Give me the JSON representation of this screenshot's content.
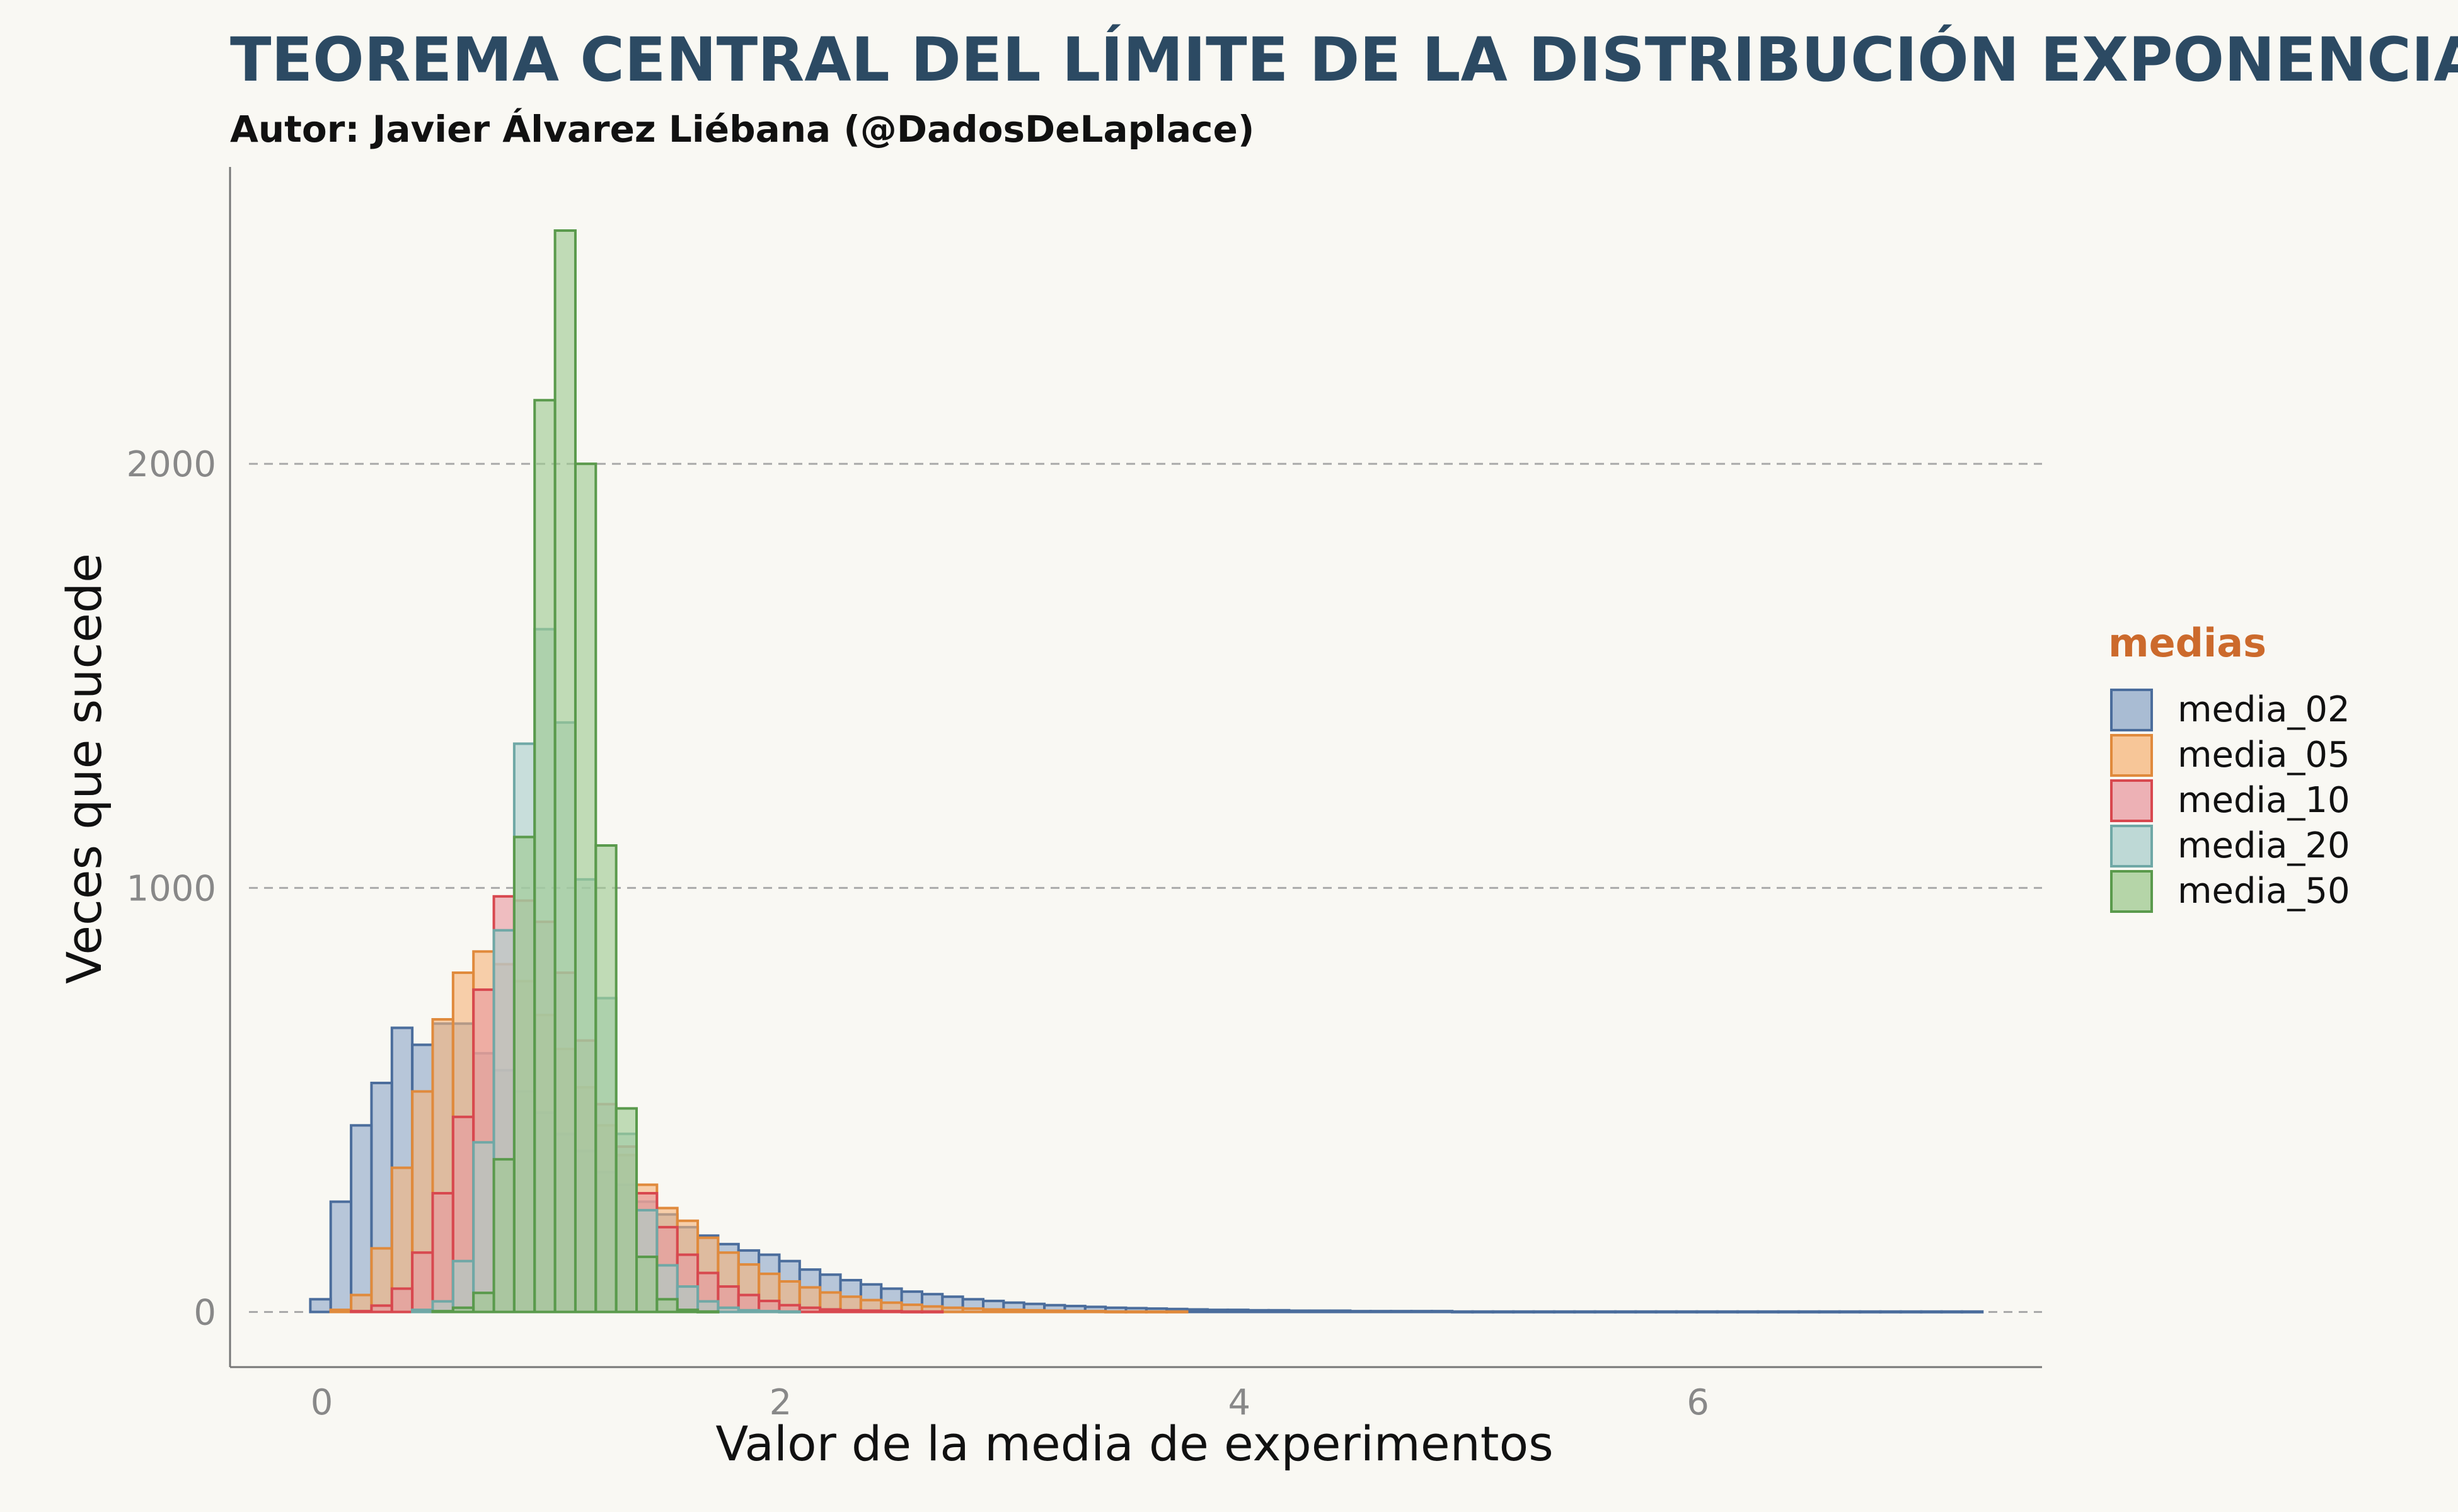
{
  "title": "TEOREMA CENTRAL DEL LÍMITE DE LA DISTRIBUCIÓN EXPONENCIAL",
  "subtitle": "Autor: Javier Álvarez Liébana (@DadosDeLaplace)",
  "colors": {
    "background": "#f9f8f3",
    "title": "#2c4a63",
    "legend_title": "#cc6a2c",
    "grid": "#aaaaaa",
    "axis": "#777777"
  },
  "chart_data": {
    "type": "histogram",
    "title": "TEOREMA CENTRAL DEL LÍMITE DE LA DISTRIBUCIÓN EXPONENCIAL",
    "subtitle": "Autor: Javier Álvarez Liébana (@DadosDeLaplace)",
    "xlabel": "Valor de la media de experimentos",
    "ylabel": "Veces que sucede",
    "xlim": [
      -0.4,
      7.5
    ],
    "ylim": [
      -130,
      2700
    ],
    "x_ticks": [
      "0",
      "2",
      "4",
      "6"
    ],
    "x_tick_values": [
      0,
      2,
      4,
      6
    ],
    "y_ticks": [
      "0",
      "1000",
      "2000"
    ],
    "y_tick_values": [
      0,
      1000,
      2000
    ],
    "grid": "horizontal dashed major lines",
    "legend_title": "medias",
    "legend_position": "right",
    "bin_start": -0.05,
    "bin_width": 0.0889,
    "series": [
      {
        "name": "media_02",
        "fill": "#8ea8c8",
        "stroke": "#4b6d9c",
        "values": [
          30,
          260,
          440,
          540,
          670,
          630,
          680,
          680,
          610,
          570,
          520,
          470,
          420,
          380,
          330,
          300,
          260,
          230,
          200,
          180,
          160,
          145,
          135,
          120,
          100,
          88,
          75,
          65,
          55,
          48,
          42,
          36,
          30,
          26,
          22,
          19,
          16,
          14,
          12,
          10,
          9,
          8,
          7,
          6,
          5,
          5,
          4,
          4,
          3,
          3,
          3,
          2,
          2,
          2,
          2,
          2,
          1,
          1,
          1,
          1,
          1,
          1,
          1,
          1,
          1,
          1,
          1,
          1,
          1,
          1,
          1,
          1,
          1,
          1,
          1,
          1,
          1,
          1,
          1,
          1,
          1,
          1
        ]
      },
      {
        "name": "media_05",
        "fill": "#f5b57a",
        "stroke": "#e08a3c",
        "values": [
          0,
          5,
          40,
          150,
          340,
          520,
          690,
          800,
          850,
          820,
          780,
          700,
          620,
          530,
          440,
          370,
          300,
          245,
          215,
          175,
          140,
          112,
          90,
          72,
          58,
          46,
          36,
          28,
          22,
          17,
          13,
          10,
          8,
          6,
          5,
          4,
          3,
          2,
          2,
          1,
          1,
          1,
          1
        ]
      },
      {
        "name": "media_10",
        "fill": "#e89aa0",
        "stroke": "#d8484f",
        "values": [
          0,
          0,
          2,
          15,
          55,
          140,
          280,
          460,
          760,
          980,
          970,
          920,
          800,
          640,
          490,
          390,
          280,
          200,
          135,
          92,
          60,
          40,
          26,
          16,
          10,
          6,
          4,
          3,
          2,
          1,
          1
        ]
      },
      {
        "name": "media_20",
        "fill": "#a9cfcc",
        "stroke": "#6fa8a6",
        "values": [
          0,
          0,
          0,
          0,
          0,
          5,
          25,
          120,
          400,
          900,
          1340,
          1610,
          1390,
          1020,
          740,
          420,
          240,
          110,
          60,
          25,
          10,
          4,
          2,
          1
        ]
      },
      {
        "name": "media_50",
        "fill": "#9dc98f",
        "stroke": "#5a9a4c",
        "values": [
          0,
          0,
          0,
          0,
          0,
          0,
          2,
          10,
          45,
          360,
          1120,
          2150,
          2550,
          2000,
          1100,
          480,
          130,
          30,
          5,
          1
        ]
      }
    ]
  }
}
